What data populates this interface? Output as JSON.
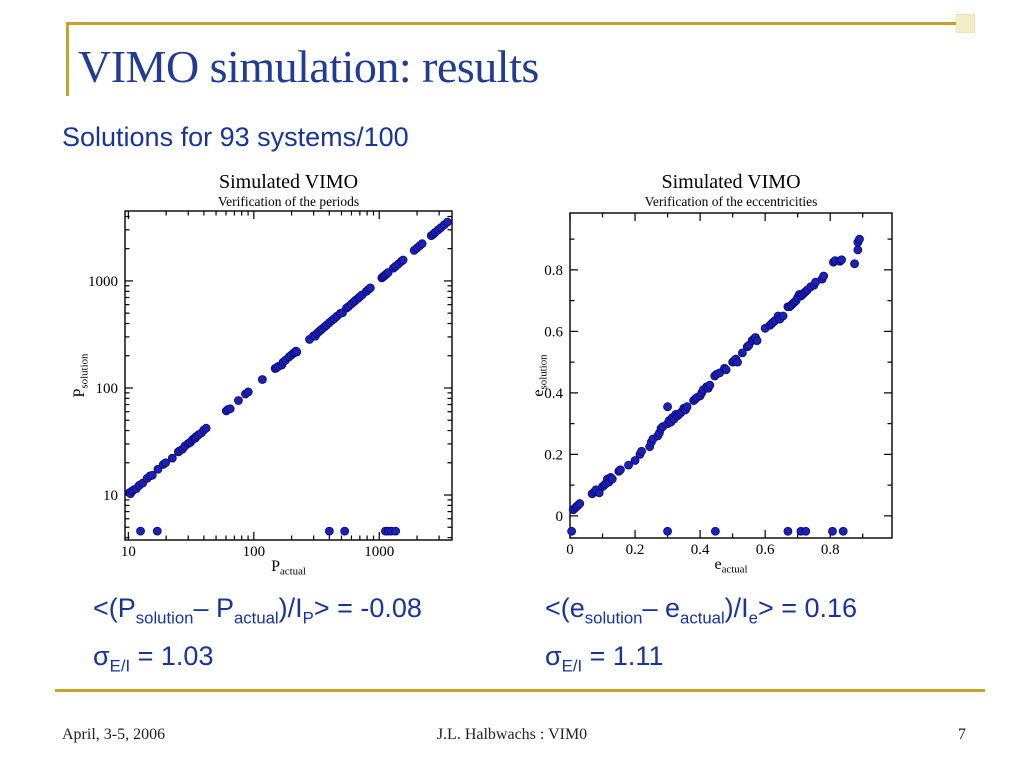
{
  "slide": {
    "title": "VIMO simulation: results",
    "subtitle": "Solutions for 93 systems/100"
  },
  "colors": {
    "accent_gold": "#C7A22B",
    "corner_square_fill": "#F3EEC5",
    "title_blue": "#203C96",
    "body_blue": "#1734A2",
    "marker_fill": "#1C22AD",
    "marker_edge": "#060687"
  },
  "formulas": {
    "period_mean": [
      {
        "t": "<(P"
      },
      {
        "t": "solution",
        "sub": true
      },
      {
        "t": "– P"
      },
      {
        "t": "actual",
        "sub": true
      },
      {
        "t": ")/I"
      },
      {
        "t": "P",
        "sub": true
      },
      {
        "t": "> = -0.08"
      }
    ],
    "period_sigma": [
      {
        "t": "σ"
      },
      {
        "t": "E/I",
        "sub": true
      },
      {
        "t": " = 1.03"
      }
    ],
    "ecc_mean": [
      {
        "t": "<(e"
      },
      {
        "t": "solution",
        "sub": true
      },
      {
        "t": "– e"
      },
      {
        "t": "actual",
        "sub": true
      },
      {
        "t": ")/I"
      },
      {
        "t": "e",
        "sub": true
      },
      {
        "t": "> = 0.16"
      }
    ],
    "ecc_sigma": [
      {
        "t": "σ"
      },
      {
        "t": "E/I",
        "sub": true
      },
      {
        "t": " = 1.11"
      }
    ]
  },
  "footer": {
    "date": "April, 3-5, 2006",
    "credit": "J.L. Halbwachs : VIM0",
    "page": "7"
  },
  "chart_data": [
    {
      "type": "scatter",
      "title": "Simulated VIMO",
      "subtitle": "Verification of the periods",
      "x_scale": "log",
      "y_scale": "log",
      "x_range": [
        9.4,
        3800
      ],
      "y_range": [
        3.8,
        4500
      ],
      "x_ticks": [
        10,
        100,
        1000
      ],
      "x_tick_labels": [
        "10",
        "100",
        "1000"
      ],
      "y_ticks": [
        10,
        100,
        1000
      ],
      "y_tick_labels": [
        "10",
        "100",
        "1000"
      ],
      "xlabel": [
        {
          "t": "P"
        },
        {
          "t": "actual",
          "sub": true
        }
      ],
      "ylabel": [
        {
          "t": "P"
        },
        {
          "t": "solution",
          "sub": true
        }
      ],
      "marker_color": "#1C22AD",
      "marker_edge": "#060687",
      "points": [
        [
          10.2,
          10.5
        ],
        [
          10.4,
          10.3
        ],
        [
          10.7,
          10.9
        ],
        [
          11.1,
          11.2
        ],
        [
          11.6,
          11.5
        ],
        [
          12.2,
          12.3
        ],
        [
          13.0,
          12.9
        ],
        [
          14.1,
          14.3
        ],
        [
          14.9,
          15.1
        ],
        [
          15.5,
          15.3
        ],
        [
          17.2,
          17.4
        ],
        [
          19.0,
          19.3
        ],
        [
          19.8,
          20.0
        ],
        [
          22.4,
          22.1
        ],
        [
          25.0,
          25.3
        ],
        [
          25.7,
          25.9
        ],
        [
          27.1,
          26.9
        ],
        [
          28.3,
          28.8
        ],
        [
          30.0,
          30.3
        ],
        [
          31.1,
          30.9
        ],
        [
          32.3,
          32.7
        ],
        [
          33.4,
          33.8
        ],
        [
          34.1,
          33.9
        ],
        [
          34.8,
          35.2
        ],
        [
          36.0,
          36.3
        ],
        [
          38.1,
          37.9
        ],
        [
          40.0,
          40.5
        ],
        [
          41.7,
          42.1
        ],
        [
          60.3,
          61.0
        ],
        [
          62.2,
          62.9
        ],
        [
          64.8,
          64.0
        ],
        [
          75.4,
          76.4
        ],
        [
          85.8,
          87.8
        ],
        [
          90.3,
          91.8
        ],
        [
          117,
          120
        ],
        [
          148,
          152
        ],
        [
          151,
          154
        ],
        [
          157,
          159
        ],
        [
          167,
          164
        ],
        [
          171,
          174
        ],
        [
          179,
          182
        ],
        [
          191,
          195
        ],
        [
          199,
          203
        ],
        [
          207,
          211
        ],
        [
          212,
          215
        ],
        [
          217,
          221
        ],
        [
          220,
          217
        ],
        [
          278,
          284
        ],
        [
          299,
          307
        ],
        [
          309,
          304
        ],
        [
          319,
          324
        ],
        [
          329,
          335
        ],
        [
          341,
          347
        ],
        [
          351,
          357
        ],
        [
          367,
          373
        ],
        [
          379,
          385
        ],
        [
          399,
          407
        ],
        [
          419,
          427
        ],
        [
          439,
          445
        ],
        [
          459,
          467
        ],
        [
          489,
          497
        ],
        [
          509,
          504
        ],
        [
          549,
          559
        ],
        [
          569,
          577
        ],
        [
          599,
          609
        ],
        [
          629,
          639
        ],
        [
          649,
          661
        ],
        [
          679,
          689
        ],
        [
          699,
          711
        ],
        [
          729,
          741
        ],
        [
          789,
          799
        ],
        [
          819,
          831
        ],
        [
          849,
          861
        ],
        [
          1048,
          1068
        ],
        [
          1078,
          1098
        ],
        [
          1098,
          1113
        ],
        [
          1118,
          1138
        ],
        [
          1148,
          1168
        ],
        [
          1178,
          1198
        ],
        [
          1298,
          1318
        ],
        [
          1348,
          1368
        ],
        [
          1418,
          1438
        ],
        [
          1498,
          1523
        ],
        [
          1548,
          1568
        ],
        [
          1898,
          1928
        ],
        [
          1998,
          2028
        ],
        [
          2098,
          2128
        ],
        [
          2198,
          2228
        ],
        [
          2598,
          2648
        ],
        [
          2698,
          2738
        ],
        [
          2798,
          2848
        ],
        [
          2948,
          2998
        ],
        [
          3098,
          3148
        ],
        [
          3298,
          3348
        ],
        [
          3498,
          3548
        ]
      ],
      "outliers_x": [
        12.5,
        17,
        400,
        530,
        1120,
        1180,
        1250,
        1350
      ],
      "outlier_y": 4.6
    },
    {
      "type": "scatter",
      "title": "Simulated VIMO",
      "subtitle": "Verification of the eccentricities",
      "x_scale": "linear",
      "y_scale": "linear",
      "x_range": [
        0,
        0.99
      ],
      "y_range": [
        -0.072,
        0.985
      ],
      "x_ticks": [
        0,
        0.2,
        0.4,
        0.6,
        0.8
      ],
      "x_tick_labels": [
        "0",
        "0.2",
        "0.4",
        "0.6",
        "0.8"
      ],
      "y_ticks": [
        0,
        0.2,
        0.4,
        0.6,
        0.8
      ],
      "y_tick_labels": [
        "0",
        "0.2",
        "0.4",
        "0.6",
        "0.8"
      ],
      "minor_step": 0.1,
      "xlabel": [
        {
          "t": "e"
        },
        {
          "t": "actual",
          "sub": true
        }
      ],
      "ylabel": [
        {
          "t": "e"
        },
        {
          "t": "solution",
          "sub": true
        }
      ],
      "marker_color": "#1C22AD",
      "marker_edge": "#060687",
      "points": [
        [
          0.01,
          0.02
        ],
        [
          0.015,
          0.025
        ],
        [
          0.02,
          0.03
        ],
        [
          0.025,
          0.035
        ],
        [
          0.03,
          0.04
        ],
        [
          0.068,
          0.072
        ],
        [
          0.075,
          0.078
        ],
        [
          0.08,
          0.085
        ],
        [
          0.09,
          0.075
        ],
        [
          0.1,
          0.095
        ],
        [
          0.105,
          0.1
        ],
        [
          0.11,
          0.105
        ],
        [
          0.115,
          0.12
        ],
        [
          0.12,
          0.11
        ],
        [
          0.125,
          0.125
        ],
        [
          0.13,
          0.12
        ],
        [
          0.15,
          0.145
        ],
        [
          0.155,
          0.15
        ],
        [
          0.18,
          0.165
        ],
        [
          0.2,
          0.18
        ],
        [
          0.215,
          0.2
        ],
        [
          0.22,
          0.21
        ],
        [
          0.245,
          0.225
        ],
        [
          0.25,
          0.24
        ],
        [
          0.255,
          0.25
        ],
        [
          0.27,
          0.26
        ],
        [
          0.275,
          0.27
        ],
        [
          0.28,
          0.285
        ],
        [
          0.285,
          0.29
        ],
        [
          0.3,
          0.3
        ],
        [
          0.3,
          0.355
        ],
        [
          0.305,
          0.31
        ],
        [
          0.31,
          0.305
        ],
        [
          0.315,
          0.32
        ],
        [
          0.32,
          0.315
        ],
        [
          0.325,
          0.33
        ],
        [
          0.33,
          0.325
        ],
        [
          0.335,
          0.33
        ],
        [
          0.34,
          0.335
        ],
        [
          0.345,
          0.34
        ],
        [
          0.35,
          0.35
        ],
        [
          0.355,
          0.345
        ],
        [
          0.36,
          0.355
        ],
        [
          0.38,
          0.375
        ],
        [
          0.385,
          0.38
        ],
        [
          0.39,
          0.385
        ],
        [
          0.4,
          0.39
        ],
        [
          0.405,
          0.4
        ],
        [
          0.41,
          0.41
        ],
        [
          0.42,
          0.42
        ],
        [
          0.425,
          0.415
        ],
        [
          0.43,
          0.425
        ],
        [
          0.445,
          0.455
        ],
        [
          0.45,
          0.46
        ],
        [
          0.46,
          0.465
        ],
        [
          0.475,
          0.48
        ],
        [
          0.48,
          0.475
        ],
        [
          0.5,
          0.5
        ],
        [
          0.505,
          0.505
        ],
        [
          0.51,
          0.51
        ],
        [
          0.515,
          0.5
        ],
        [
          0.53,
          0.53
        ],
        [
          0.545,
          0.55
        ],
        [
          0.55,
          0.555
        ],
        [
          0.56,
          0.57
        ],
        [
          0.565,
          0.575
        ],
        [
          0.57,
          0.58
        ],
        [
          0.575,
          0.57
        ],
        [
          0.6,
          0.61
        ],
        [
          0.615,
          0.62
        ],
        [
          0.62,
          0.625
        ],
        [
          0.625,
          0.63
        ],
        [
          0.63,
          0.635
        ],
        [
          0.64,
          0.65
        ],
        [
          0.645,
          0.64
        ],
        [
          0.655,
          0.65
        ],
        [
          0.67,
          0.68
        ],
        [
          0.675,
          0.68
        ],
        [
          0.68,
          0.685
        ],
        [
          0.685,
          0.69
        ],
        [
          0.69,
          0.695
        ],
        [
          0.695,
          0.7
        ],
        [
          0.7,
          0.71
        ],
        [
          0.705,
          0.72
        ],
        [
          0.71,
          0.715
        ],
        [
          0.715,
          0.72
        ],
        [
          0.72,
          0.725
        ],
        [
          0.725,
          0.73
        ],
        [
          0.73,
          0.735
        ],
        [
          0.74,
          0.745
        ],
        [
          0.75,
          0.75
        ],
        [
          0.755,
          0.76
        ],
        [
          0.775,
          0.77
        ],
        [
          0.78,
          0.78
        ],
        [
          0.81,
          0.825
        ],
        [
          0.815,
          0.83
        ],
        [
          0.83,
          0.828
        ],
        [
          0.835,
          0.833
        ],
        [
          0.875,
          0.82
        ],
        [
          0.885,
          0.865
        ],
        [
          0.885,
          0.89
        ],
        [
          0.89,
          0.9
        ]
      ],
      "outliers_x": [
        0.005,
        0.3,
        0.447,
        0.67,
        0.71,
        0.725,
        0.807,
        0.84
      ],
      "outlier_y": -0.05
    }
  ]
}
